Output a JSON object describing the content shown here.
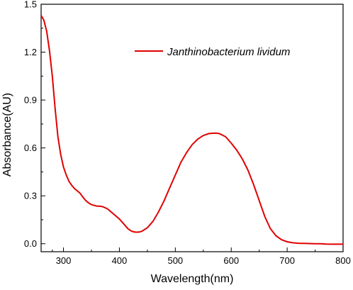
{
  "chart_data": {
    "type": "line",
    "xlabel": "Wavelength(nm)",
    "ylabel": "Absorbance(AU)",
    "xlim": [
      260,
      800
    ],
    "ylim": [
      -0.05,
      1.5
    ],
    "x_ticks": [
      300,
      400,
      500,
      600,
      700,
      800
    ],
    "x_tick_labels": [
      "300",
      "400",
      "500",
      "600",
      "700",
      "800"
    ],
    "y_ticks": [
      0.0,
      0.3,
      0.6,
      0.9,
      1.2,
      1.5
    ],
    "y_tick_labels": [
      "0.0",
      "0.3",
      "0.6",
      "0.9",
      "1.2",
      "1.5"
    ],
    "grid": false,
    "legend_position": "top-right",
    "series": [
      {
        "name": "Janthinobacterium lividum",
        "color": "#e00000",
        "x": [
          260,
          265,
          270,
          275,
          280,
          285,
          290,
          295,
          300,
          305,
          310,
          315,
          320,
          325,
          330,
          335,
          340,
          345,
          350,
          355,
          360,
          365,
          370,
          375,
          380,
          385,
          390,
          395,
          400,
          405,
          410,
          415,
          420,
          425,
          430,
          435,
          440,
          450,
          460,
          470,
          480,
          490,
          500,
          510,
          520,
          530,
          540,
          550,
          560,
          570,
          575,
          580,
          590,
          600,
          610,
          620,
          630,
          640,
          650,
          660,
          670,
          680,
          690,
          700,
          710,
          720,
          730,
          740,
          750,
          760,
          770,
          780,
          790,
          800
        ],
        "y": [
          1.43,
          1.4,
          1.33,
          1.21,
          1.05,
          0.85,
          0.67,
          0.56,
          0.48,
          0.43,
          0.39,
          0.365,
          0.345,
          0.33,
          0.315,
          0.29,
          0.27,
          0.255,
          0.245,
          0.24,
          0.235,
          0.235,
          0.232,
          0.225,
          0.215,
          0.2,
          0.185,
          0.17,
          0.155,
          0.135,
          0.115,
          0.095,
          0.082,
          0.075,
          0.072,
          0.073,
          0.078,
          0.1,
          0.14,
          0.2,
          0.27,
          0.35,
          0.43,
          0.51,
          0.57,
          0.62,
          0.655,
          0.678,
          0.69,
          0.693,
          0.692,
          0.688,
          0.67,
          0.63,
          0.585,
          0.53,
          0.46,
          0.37,
          0.27,
          0.17,
          0.095,
          0.05,
          0.025,
          0.012,
          0.006,
          0.003,
          0.002,
          0.001,
          0.0,
          0.0,
          -0.002,
          -0.003,
          -0.003,
          -0.003
        ]
      }
    ]
  }
}
